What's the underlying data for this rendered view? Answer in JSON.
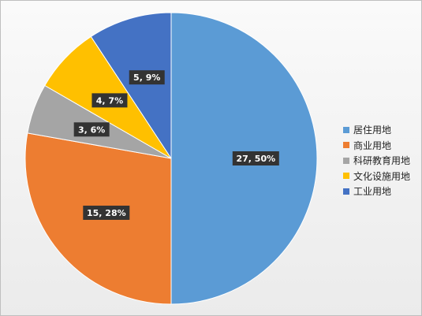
{
  "chart_data": {
    "type": "pie",
    "categories": [
      "居住用地",
      "商业用地",
      "科研教育用地",
      "文化设施用地",
      "工业用地"
    ],
    "values": [
      27,
      15,
      3,
      4,
      5
    ],
    "percent_labels": [
      "50%",
      "28%",
      "6%",
      "7%",
      "9%"
    ],
    "data_labels": [
      "27, 50%",
      "15, 28%",
      "3, 6%",
      "4, 7%",
      "5, 9%"
    ],
    "colors": [
      "#5B9BD5",
      "#ED7D31",
      "#A5A5A5",
      "#FFC000",
      "#4472C4"
    ],
    "legend_position": "right",
    "start_angle": "top",
    "direction": "clockwise"
  }
}
